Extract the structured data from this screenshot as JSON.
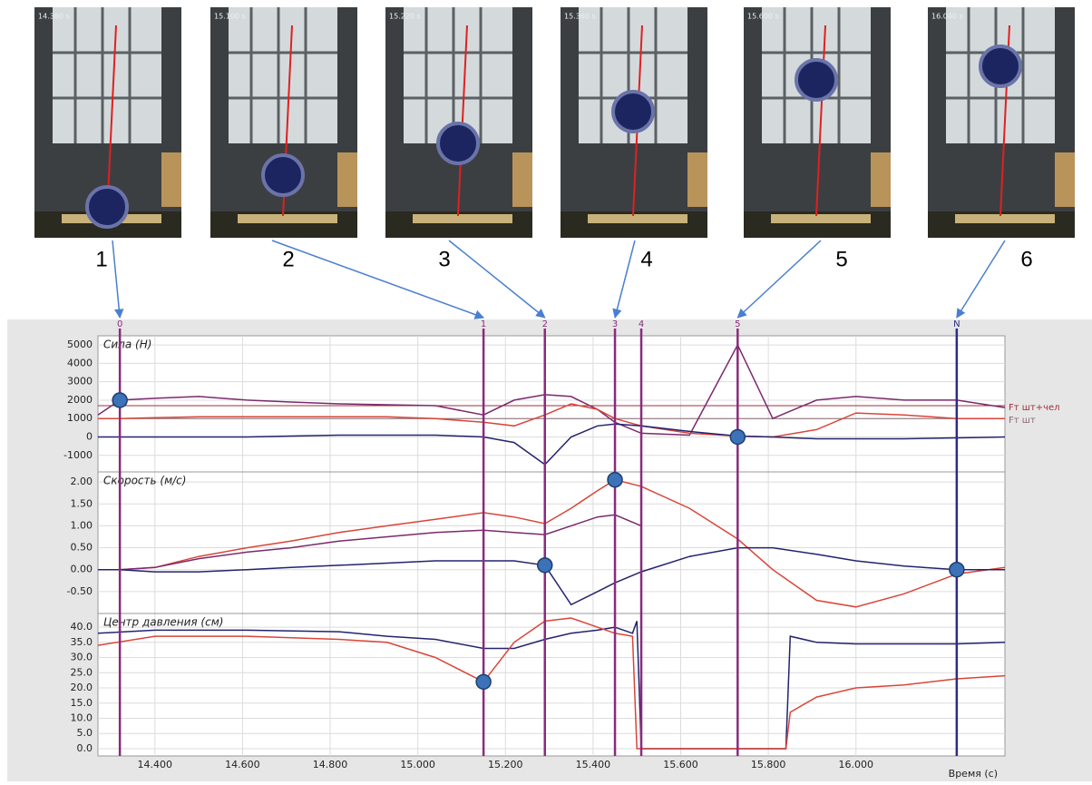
{
  "frames": [
    {
      "label": "1",
      "time": "14.380 s"
    },
    {
      "label": "2",
      "time": "15.100 s"
    },
    {
      "label": "3",
      "time": "15.220 s"
    },
    {
      "label": "4",
      "time": "15.360 s"
    },
    {
      "label": "5",
      "time": "15.600 s"
    },
    {
      "label": "6",
      "time": "16.040 s"
    }
  ],
  "time_axis": {
    "xlim": [
      14.27,
      16.34
    ],
    "xlabel": "Время (с)",
    "xticks": [
      {
        "value": 14.4,
        "label": "14.400"
      },
      {
        "value": 14.6,
        "label": "14.600"
      },
      {
        "value": 14.8,
        "label": "14.800"
      },
      {
        "value": 15.0,
        "label": "15.000"
      },
      {
        "value": 15.2,
        "label": "15.200"
      },
      {
        "value": 15.4,
        "label": "15.400"
      },
      {
        "value": 15.6,
        "label": "15.600"
      },
      {
        "value": 15.8,
        "label": "15.800"
      },
      {
        "value": 16.0,
        "label": "16.000"
      }
    ]
  },
  "event_markers": [
    {
      "label": "0",
      "x": 14.32,
      "color": "#8a2b7c"
    },
    {
      "label": "1",
      "x": 15.15,
      "color": "#8a2b7c"
    },
    {
      "label": "2",
      "x": 15.29,
      "color": "#8a2b7c"
    },
    {
      "label": "3",
      "x": 15.45,
      "color": "#8a2b7c"
    },
    {
      "label": "4",
      "x": 15.51,
      "color": "#8a2b7c"
    },
    {
      "label": "5",
      "x": 15.73,
      "color": "#8a2b7c"
    },
    {
      "label": "N",
      "x": 16.23,
      "color": "#2b2b86"
    }
  ],
  "chart_data": [
    {
      "type": "line",
      "title": "Сила (Н)",
      "ylim": [
        -1900,
        5500
      ],
      "yticks": [
        -1000,
        0,
        1000,
        2000,
        3000,
        4000,
        5000
      ],
      "grid": true,
      "x": [
        14.27,
        14.32,
        14.4,
        14.5,
        14.61,
        14.71,
        14.82,
        14.93,
        15.04,
        15.15,
        15.22,
        15.29,
        15.35,
        15.41,
        15.45,
        15.51,
        15.62,
        15.73,
        15.81,
        15.91,
        16.0,
        16.11,
        16.23,
        16.34
      ],
      "series": [
        {
          "color": "#7a2a6c",
          "values": [
            1200,
            2000,
            2100,
            2200,
            2000,
            1900,
            1800,
            1750,
            1700,
            1200,
            2000,
            2300,
            2200,
            1500,
            800,
            200,
            100,
            5000,
            1000,
            2000,
            2200,
            2000,
            2000,
            1600
          ]
        },
        {
          "color": "#d9453a",
          "values": [
            1000,
            1000,
            1050,
            1100,
            1100,
            1100,
            1100,
            1100,
            1000,
            800,
            600,
            1200,
            1800,
            1500,
            1000,
            600,
            200,
            50,
            0,
            400,
            1300,
            1200,
            1000,
            1000
          ]
        },
        {
          "color": "#23236e",
          "values": [
            0,
            0,
            0,
            0,
            0,
            50,
            100,
            100,
            100,
            0,
            -300,
            -1500,
            0,
            600,
            700,
            600,
            300,
            50,
            0,
            -100,
            -100,
            -100,
            -50,
            0
          ]
        }
      ],
      "reference_lines": [
        {
          "value": 1700,
          "label": "Fт шт+чел",
          "color": "#a0303a"
        },
        {
          "value": 1000,
          "label": "Fт шт",
          "color": "#8a6a70"
        }
      ],
      "points": [
        {
          "x": 14.32,
          "y": 2000
        },
        {
          "x": 15.73,
          "y": 0
        }
      ]
    },
    {
      "type": "line",
      "title": "Скорость (м/с)",
      "ylim": [
        -1.0,
        2.23
      ],
      "yticks": [
        {
          "value": -0.5,
          "label": "-0.50"
        },
        {
          "value": 0,
          "label": "0.00"
        },
        {
          "value": 0.5,
          "label": "0.50"
        },
        {
          "value": 1.0,
          "label": "1.00"
        },
        {
          "value": 1.5,
          "label": "1.50"
        },
        {
          "value": 2.0,
          "label": "2.00"
        }
      ],
      "grid": true,
      "x": [
        14.27,
        14.32,
        14.4,
        14.5,
        14.61,
        14.71,
        14.82,
        14.93,
        15.04,
        15.15,
        15.22,
        15.29,
        15.35,
        15.41,
        15.45,
        15.51,
        15.62,
        15.73,
        15.81,
        15.91,
        16.0,
        16.11,
        16.23,
        16.34
      ],
      "series": [
        {
          "color": "#d9453a",
          "values": [
            0,
            0,
            0.05,
            0.3,
            0.5,
            0.65,
            0.85,
            1.0,
            1.15,
            1.3,
            1.2,
            1.05,
            1.4,
            1.8,
            2.05,
            1.9,
            1.4,
            0.7,
            0,
            -0.7,
            -0.85,
            -0.55,
            -0.1,
            0.05
          ]
        },
        {
          "color": "#7a2a6c",
          "values": [
            0,
            0,
            0.05,
            0.25,
            0.4,
            0.5,
            0.65,
            0.75,
            0.85,
            0.9,
            0.85,
            0.8,
            1.0,
            1.2,
            1.25,
            1.0,
            null,
            null,
            null,
            null,
            null,
            null,
            null,
            null
          ]
        },
        {
          "color": "#23236e",
          "values": [
            0,
            0,
            -0.05,
            -0.05,
            0,
            0.05,
            0.1,
            0.15,
            0.2,
            0.2,
            0.2,
            0.1,
            -0.8,
            -0.5,
            -0.3,
            -0.05,
            0.3,
            0.5,
            0.5,
            0.35,
            0.2,
            0.08,
            0,
            0
          ]
        }
      ],
      "points": [
        {
          "x": 15.45,
          "y": 2.05
        },
        {
          "x": 15.29,
          "y": 0.1
        },
        {
          "x": 16.23,
          "y": 0
        }
      ]
    },
    {
      "type": "line",
      "title": "Центр давления (см)",
      "ylim": [
        -2.4,
        44.5
      ],
      "yticks": [
        {
          "value": 0,
          "label": "0.0"
        },
        {
          "value": 5,
          "label": "5.0"
        },
        {
          "value": 10,
          "label": "10.0"
        },
        {
          "value": 15,
          "label": "15.0"
        },
        {
          "value": 20,
          "label": "20.0"
        },
        {
          "value": 25,
          "label": "25.0"
        },
        {
          "value": 30,
          "label": "30.0"
        },
        {
          "value": 35,
          "label": "35.0"
        },
        {
          "value": 40,
          "label": "40.0"
        }
      ],
      "grid": true,
      "x": [
        14.27,
        14.4,
        14.61,
        14.82,
        14.93,
        15.04,
        15.15,
        15.22,
        15.29,
        15.35,
        15.41,
        15.45,
        15.49,
        15.5,
        15.51,
        15.62,
        15.73,
        15.84,
        15.85,
        15.91,
        16.0,
        16.11,
        16.23,
        16.34
      ],
      "series": [
        {
          "color": "#23236e",
          "values": [
            38,
            39,
            39,
            38.5,
            37,
            36,
            33,
            33,
            36,
            38,
            39,
            40,
            38,
            42,
            0,
            0,
            0,
            0,
            37,
            35,
            34.5,
            34.5,
            34.5,
            35
          ]
        },
        {
          "color": "#d9453a",
          "values": [
            34,
            37,
            37,
            36,
            35,
            30,
            22,
            35,
            42,
            43,
            40,
            38,
            37,
            0,
            0,
            0,
            0,
            0,
            12,
            17,
            20,
            21,
            23,
            24
          ]
        }
      ],
      "points": [
        {
          "x": 15.15,
          "y": 22
        }
      ]
    }
  ]
}
